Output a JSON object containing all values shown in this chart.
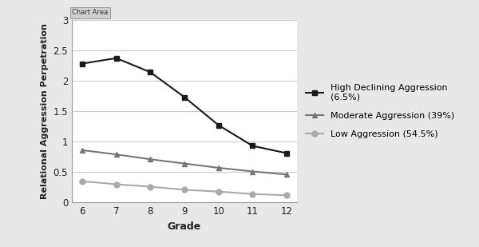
{
  "grades": [
    6,
    7,
    8,
    9,
    10,
    11,
    12
  ],
  "high_declining": [
    2.28,
    2.37,
    2.14,
    1.73,
    1.27,
    0.93,
    0.81
  ],
  "moderate": [
    0.86,
    0.79,
    0.71,
    0.64,
    0.57,
    0.51,
    0.46
  ],
  "low": [
    0.35,
    0.3,
    0.26,
    0.21,
    0.18,
    0.14,
    0.12
  ],
  "high_color": "#1a1a1a",
  "moderate_color": "#777777",
  "low_color": "#aaaaaa",
  "xlabel": "Grade",
  "ylabel": "Relational Aggression Perpetration",
  "ylim": [
    0,
    3
  ],
  "yticks": [
    0,
    0.5,
    1.0,
    1.5,
    2.0,
    2.5,
    3.0
  ],
  "legend_labels": [
    "High Declining Aggression\n(6.5%)",
    "Moderate Aggression (39%)",
    "Low Aggression (54.5%)"
  ],
  "bg_color": "#e8e8e8",
  "plot_bg_color": "#ffffff",
  "chart_area_label": "Chart Area"
}
